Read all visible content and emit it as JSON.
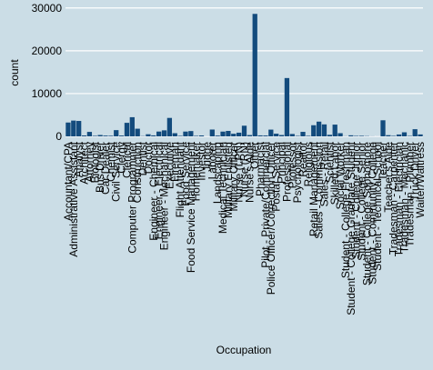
{
  "chart_data": {
    "type": "bar",
    "x_label": "Occupation",
    "y_label": "count",
    "categories": [
      "Accountant/CPA",
      "Administrative Assistant",
      "Analyst",
      "Architect",
      "Attorney",
      "Biologist",
      "Bus Driver",
      "Car Dealer",
      "Chemist",
      "Civil Service",
      "Clergy",
      "Clerical",
      "Computer Programmer",
      "Construction",
      "Dentist",
      "Doctor",
      "Engineer - Chemical",
      "Engineer - Electrical",
      "Engineer - Mechanical",
      "Executive",
      "Fireman",
      "Flight Attendant",
      "Food Service",
      "Food Service Management",
      "Homemaker",
      "Investor",
      "Judge",
      "Laborer",
      "Landscaping",
      "Medical Technician",
      "Military Enlisted",
      "Military Officer",
      "Nurse (LPN)",
      "Nurse (RN)",
      "Nurse's Aide",
      "Other",
      "Pharmacist",
      "Pilot - Private/Commercial",
      "Police Officer/Correction Officer",
      "Postal Service",
      "Principal",
      "Professional",
      "Professor",
      "Psychologist",
      "Realtor",
      "Religious",
      "Retail Management",
      "Sales - Commission",
      "Sales - Retail",
      "Scientist",
      "Skilled Labor",
      "Social Worker",
      "Student - College Freshman",
      "Student - College Graduate Student",
      "Student - College Junior",
      "Student - College Senior",
      "Student - College Sophomore",
      "Student - Community College",
      "Student - Technical School",
      "Teacher",
      "Teacher's Aide",
      "Tradesman - Carpenter",
      "Tradesman - Electrician",
      "Tradesman - Mechanic",
      "Tradesman - Plumber",
      "Truck Driver",
      "Waiter/Waitress"
    ],
    "values": [
      3233,
      3688,
      3602,
      213,
      1046,
      125,
      316,
      180,
      145,
      1457,
      196,
      3164,
      4478,
      1790,
      68,
      494,
      225,
      1125,
      1406,
      4311,
      739,
      123,
      1123,
      1239,
      120,
      214,
      22,
      1595,
      184,
      1117,
      1272,
      607,
      863,
      2489,
      300,
      28617,
      225,
      199,
      1578,
      627,
      313,
      13628,
      556,
      106,
      1054,
      124,
      2602,
      3446,
      2797,
      363,
      2746,
      741,
      41,
      245,
      112,
      134,
      69,
      28,
      16,
      3759,
      276,
      120,
      440,
      951,
      102,
      1675,
      453
    ],
    "color": "#134b7d",
    "ylim": [
      0,
      30800
    ],
    "yticks": [
      0,
      10000,
      20000,
      30000
    ],
    "grid": true
  }
}
